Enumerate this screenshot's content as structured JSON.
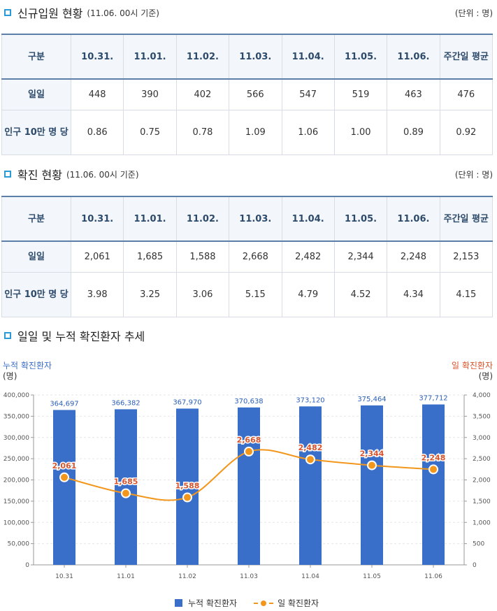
{
  "section1": {
    "title": "신규입원 현황",
    "subtitle": "(11.06. 00시 기준)",
    "unit": "(단위 : 명)",
    "columns": [
      "구분",
      "10.31.",
      "11.01.",
      "11.02.",
      "11.03.",
      "11.04.",
      "11.05.",
      "11.06.",
      "주간일 평균"
    ],
    "rows": [
      {
        "label": "일일",
        "values": [
          "448",
          "390",
          "402",
          "566",
          "547",
          "519",
          "463",
          "476"
        ]
      },
      {
        "label": "인구 10만 명 당",
        "values": [
          "0.86",
          "0.75",
          "0.78",
          "1.09",
          "1.06",
          "1.00",
          "0.89",
          "0.92"
        ]
      }
    ]
  },
  "section2": {
    "title": "확진 현황",
    "subtitle": "(11.06. 00시 기준)",
    "unit": "(단위 : 명)",
    "columns": [
      "구분",
      "10.31.",
      "11.01.",
      "11.02.",
      "11.03.",
      "11.04.",
      "11.05.",
      "11.06.",
      "주간일 평균"
    ],
    "rows": [
      {
        "label": "일일",
        "values": [
          "2,061",
          "1,685",
          "1,588",
          "2,668",
          "2,482",
          "2,344",
          "2,248",
          "2,153"
        ]
      },
      {
        "label": "인구 10만 명 당",
        "values": [
          "3.98",
          "3.25",
          "3.06",
          "5.15",
          "4.79",
          "4.52",
          "4.34",
          "4.15"
        ]
      }
    ]
  },
  "section3": {
    "title": "일일 및 누적 확진환자 추세"
  },
  "chart_data": {
    "type": "bar",
    "title": "일일 및 누적 확진환자 추세",
    "categories": [
      "10.31",
      "11.01",
      "11.02",
      "11.03",
      "11.04",
      "11.05",
      "11.06"
    ],
    "series": [
      {
        "name": "누적 확진환자",
        "type": "bar",
        "axis": "left",
        "color": "#3a6fc9",
        "values": [
          364697,
          366382,
          367970,
          370638,
          373120,
          375464,
          377712
        ],
        "labels": [
          "364,697",
          "366,382",
          "367,970",
          "370,638",
          "373,120",
          "375,464",
          "377,712"
        ]
      },
      {
        "name": "일 확진환자",
        "type": "line",
        "axis": "right",
        "color": "#f3961c",
        "values": [
          2061,
          1685,
          1588,
          2668,
          2482,
          2344,
          2248
        ],
        "labels": [
          "2,061",
          "1,685",
          "1,588",
          "2,668",
          "2,482",
          "2,344",
          "2,248"
        ]
      }
    ],
    "ylabel_left": "누적 확진환자",
    "ylabel_right": "일 확진환자",
    "yunit_left": "(명)",
    "yunit_right": "(명)",
    "ylim_left": [
      0,
      400000
    ],
    "ylim_right": [
      0,
      4000
    ],
    "yticks_left": [
      "0",
      "50,000",
      "100,000",
      "150,000",
      "200,000",
      "250,000",
      "300,000",
      "350,000",
      "400,000"
    ],
    "yticks_right": [
      "0",
      "500",
      "1,000",
      "1,500",
      "2,000",
      "2,500",
      "3,000",
      "3,500",
      "4,000"
    ],
    "legend_position": "bottom-center",
    "left_axis_color": "#3a6fc9",
    "right_axis_color": "#d9542c"
  }
}
